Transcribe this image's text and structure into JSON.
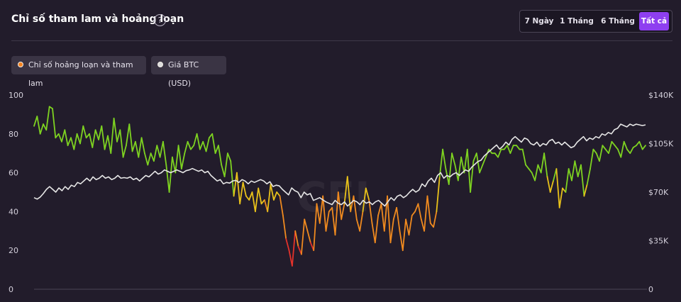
{
  "header": {
    "title": "Chỉ số tham lam và hoảng loạn",
    "help_icon": "?",
    "ranges": [
      {
        "label": "7 Ngày",
        "active": false
      },
      {
        "label": "1 Tháng",
        "active": false
      },
      {
        "label": "6 Tháng",
        "active": false
      },
      {
        "label": "Tất cả",
        "active": true
      }
    ]
  },
  "legend": [
    {
      "label": "Chỉ số hoảng loạn và tham lam",
      "color": "#f5821f"
    },
    {
      "label": "Giá BTC (USD)",
      "color": "#e8e8e8"
    }
  ],
  "chart_data": {
    "type": "line",
    "left_axis": {
      "ticks": [
        "100",
        "80",
        "60",
        "40",
        "20",
        "0"
      ],
      "range": [
        0,
        100
      ]
    },
    "right_axis": {
      "ticks": [
        "$140K",
        "$105K",
        "$70K",
        "$35K",
        "0"
      ],
      "range": [
        0,
        140000
      ]
    },
    "colors": {
      "greed": "#7ed321",
      "neutral": "#e9c21a",
      "fear": "#f08a1f",
      "extreme_fear": "#e4322b",
      "btc": "#e6e6e6"
    },
    "series": [
      {
        "name": "Chỉ số hoảng loạn và tham lam",
        "values": [
          84,
          89,
          80,
          85,
          82,
          94,
          93,
          78,
          80,
          76,
          82,
          74,
          78,
          72,
          80,
          75,
          84,
          78,
          80,
          73,
          82,
          77,
          84,
          72,
          79,
          70,
          88,
          76,
          82,
          68,
          74,
          85,
          71,
          76,
          68,
          78,
          70,
          64,
          70,
          66,
          74,
          68,
          76,
          64,
          50,
          68,
          60,
          74,
          62,
          70,
          76,
          72,
          74,
          80,
          72,
          76,
          71,
          78,
          80,
          70,
          74,
          64,
          58,
          70,
          66,
          48,
          60,
          44,
          55,
          48,
          46,
          50,
          40,
          52,
          44,
          46,
          40,
          54,
          46,
          50,
          48,
          38,
          26,
          20,
          12,
          30,
          22,
          18,
          36,
          30,
          24,
          20,
          44,
          34,
          48,
          30,
          40,
          42,
          28,
          50,
          36,
          44,
          58,
          40,
          48,
          36,
          30,
          40,
          52,
          46,
          34,
          24,
          38,
          44,
          30,
          48,
          24,
          36,
          42,
          30,
          20,
          36,
          28,
          38,
          40,
          44,
          36,
          30,
          48,
          34,
          32,
          40,
          58,
          72,
          62,
          54,
          70,
          64,
          56,
          68,
          60,
          72,
          50,
          66,
          70,
          60,
          64,
          68,
          72,
          70,
          70,
          68,
          72,
          72,
          74,
          70,
          74,
          74,
          72,
          72,
          64,
          62,
          60,
          56,
          64,
          60,
          70,
          58,
          50,
          56,
          62,
          42,
          52,
          50,
          62,
          56,
          66,
          58,
          64,
          48,
          54,
          62,
          72,
          70,
          66,
          74,
          72,
          70,
          76,
          74,
          72,
          68,
          76,
          72,
          70,
          73,
          74,
          76,
          72,
          74
        ]
      },
      {
        "name": "Giá BTC (USD)",
        "values": [
          66000,
          65000,
          66500,
          69000,
          72000,
          74000,
          72000,
          70000,
          73000,
          71000,
          74000,
          72000,
          75000,
          74000,
          77000,
          76000,
          78000,
          80000,
          78000,
          81000,
          79000,
          80000,
          82000,
          80000,
          81000,
          79000,
          80000,
          82000,
          80000,
          80500,
          80000,
          81000,
          79000,
          80000,
          78000,
          80000,
          82000,
          81000,
          83000,
          85000,
          83000,
          84000,
          86000,
          85000,
          84000,
          85000,
          86000,
          85000,
          84000,
          85500,
          86000,
          87000,
          86000,
          85000,
          86000,
          84000,
          85000,
          82000,
          80000,
          78000,
          79000,
          76000,
          77000,
          76500,
          78000,
          78500,
          77000,
          79000,
          78000,
          76000,
          78000,
          77000,
          78000,
          79000,
          78000,
          76000,
          77500,
          74000,
          75000,
          74500,
          72000,
          70000,
          68000,
          73000,
          71000,
          70000,
          66000,
          70000,
          68000,
          69000,
          64000,
          65000,
          66000,
          64500,
          63000,
          62000,
          61000,
          64000,
          62000,
          61000,
          63000,
          60000,
          62000,
          64000,
          63000,
          61000,
          64000,
          62000,
          63000,
          61000,
          63000,
          64000,
          62000,
          60000,
          63000,
          66000,
          64000,
          67000,
          68000,
          66000,
          67500,
          70000,
          72000,
          70000,
          71500,
          76000,
          74000,
          78000,
          80000,
          77000,
          82000,
          84000,
          80000,
          82000,
          81000,
          83000,
          84000,
          82000,
          84000,
          86000,
          85000,
          88000,
          90000,
          92000,
          93000,
          96000,
          98000,
          100000,
          102000,
          104000,
          101000,
          103000,
          106000,
          104000,
          108000,
          110000,
          108000,
          106000,
          109000,
          108000,
          105000,
          104000,
          106000,
          103000,
          105000,
          104000,
          107000,
          108000,
          105000,
          106000,
          104000,
          106000,
          104000,
          102000,
          103000,
          106000,
          108000,
          110000,
          107000,
          109000,
          108000,
          110000,
          109000,
          112000,
          111000,
          113000,
          112000,
          115000,
          116000,
          119000,
          118000,
          117000,
          119000,
          118000,
          119000,
          118500,
          118000,
          118500
        ]
      }
    ],
    "watermark": "CFI"
  }
}
